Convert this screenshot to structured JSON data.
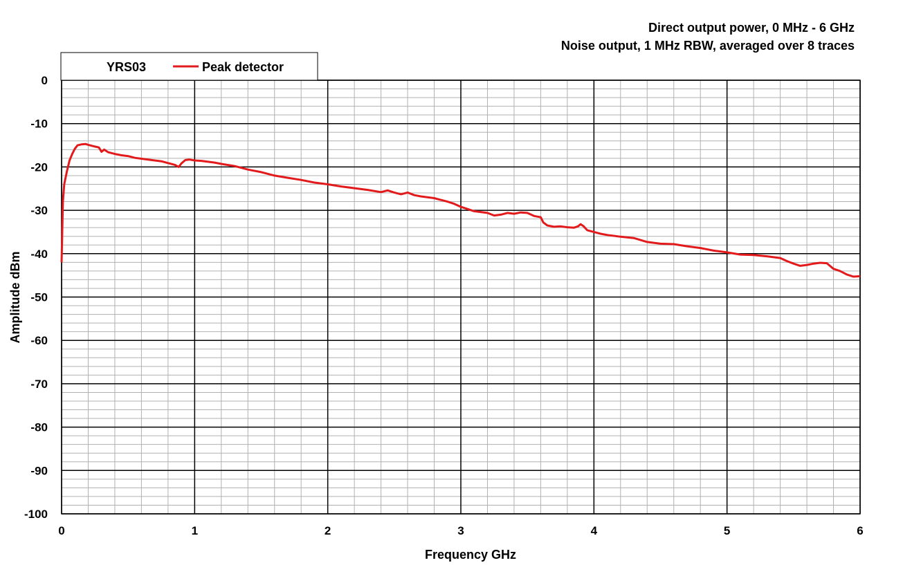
{
  "chart_data": {
    "type": "line",
    "title_lines": [
      "Direct output power, 0 MHz - 6 GHz",
      "Noise output, 1 MHz RBW, averaged over 8 traces"
    ],
    "xlabel": "Frequency  GHz",
    "ylabel": "Amplitude  dBm",
    "xlim": [
      0,
      6
    ],
    "ylim": [
      -100,
      0
    ],
    "x_ticks": [
      "0",
      "1",
      "2",
      "3",
      "4",
      "5",
      "6"
    ],
    "y_ticks": [
      "0",
      "-10",
      "-20",
      "-30",
      "-40",
      "-50",
      "-60",
      "-70",
      "-80",
      "-90",
      "-100"
    ],
    "grid": true,
    "legend": {
      "position": "top-left",
      "label": "YRS03",
      "entries": [
        "Peak detector"
      ]
    },
    "series": [
      {
        "name": "Peak detector",
        "color": "#e31a1c",
        "points": [
          [
            0.0,
            -42
          ],
          [
            0.01,
            -28
          ],
          [
            0.02,
            -24
          ],
          [
            0.04,
            -21
          ],
          [
            0.06,
            -18.5
          ],
          [
            0.08,
            -17
          ],
          [
            0.1,
            -15.8
          ],
          [
            0.12,
            -15
          ],
          [
            0.15,
            -14.8
          ],
          [
            0.18,
            -14.7
          ],
          [
            0.2,
            -14.9
          ],
          [
            0.25,
            -15.3
          ],
          [
            0.28,
            -15.5
          ],
          [
            0.3,
            -16.5
          ],
          [
            0.32,
            -16
          ],
          [
            0.35,
            -16.6
          ],
          [
            0.4,
            -17
          ],
          [
            0.45,
            -17.3
          ],
          [
            0.5,
            -17.5
          ],
          [
            0.55,
            -17.9
          ],
          [
            0.6,
            -18.1
          ],
          [
            0.65,
            -18.3
          ],
          [
            0.7,
            -18.5
          ],
          [
            0.75,
            -18.7
          ],
          [
            0.8,
            -19.1
          ],
          [
            0.85,
            -19.5
          ],
          [
            0.88,
            -20
          ],
          [
            0.9,
            -19.2
          ],
          [
            0.93,
            -18.4
          ],
          [
            0.96,
            -18.3
          ],
          [
            1.0,
            -18.5
          ],
          [
            1.05,
            -18.6
          ],
          [
            1.1,
            -18.8
          ],
          [
            1.15,
            -19
          ],
          [
            1.2,
            -19.3
          ],
          [
            1.3,
            -19.8
          ],
          [
            1.4,
            -20.6
          ],
          [
            1.5,
            -21.2
          ],
          [
            1.6,
            -22
          ],
          [
            1.7,
            -22.5
          ],
          [
            1.8,
            -23
          ],
          [
            1.9,
            -23.6
          ],
          [
            2.0,
            -24
          ],
          [
            2.1,
            -24.5
          ],
          [
            2.2,
            -24.9
          ],
          [
            2.3,
            -25.3
          ],
          [
            2.4,
            -25.8
          ],
          [
            2.45,
            -25.4
          ],
          [
            2.5,
            -25.9
          ],
          [
            2.55,
            -26.3
          ],
          [
            2.6,
            -25.9
          ],
          [
            2.65,
            -26.5
          ],
          [
            2.7,
            -26.8
          ],
          [
            2.8,
            -27.2
          ],
          [
            2.85,
            -27.6
          ],
          [
            2.9,
            -28
          ],
          [
            2.95,
            -28.5
          ],
          [
            3.0,
            -29.2
          ],
          [
            3.05,
            -29.7
          ],
          [
            3.1,
            -30.2
          ],
          [
            3.15,
            -30.4
          ],
          [
            3.2,
            -30.6
          ],
          [
            3.25,
            -31.2
          ],
          [
            3.3,
            -31
          ],
          [
            3.35,
            -30.6
          ],
          [
            3.4,
            -30.8
          ],
          [
            3.45,
            -30.5
          ],
          [
            3.5,
            -30.6
          ],
          [
            3.55,
            -31.3
          ],
          [
            3.6,
            -31.6
          ],
          [
            3.62,
            -32.8
          ],
          [
            3.65,
            -33.5
          ],
          [
            3.7,
            -33.8
          ],
          [
            3.75,
            -33.7
          ],
          [
            3.8,
            -33.9
          ],
          [
            3.85,
            -34
          ],
          [
            3.88,
            -33.7
          ],
          [
            3.9,
            -33.2
          ],
          [
            3.92,
            -33.6
          ],
          [
            3.95,
            -34.6
          ],
          [
            4.0,
            -35
          ],
          [
            4.05,
            -35.4
          ],
          [
            4.1,
            -35.7
          ],
          [
            4.2,
            -36.1
          ],
          [
            4.3,
            -36.4
          ],
          [
            4.4,
            -37.3
          ],
          [
            4.5,
            -37.7
          ],
          [
            4.6,
            -37.8
          ],
          [
            4.7,
            -38.3
          ],
          [
            4.8,
            -38.7
          ],
          [
            4.9,
            -39.3
          ],
          [
            5.0,
            -39.7
          ],
          [
            5.1,
            -40.2
          ],
          [
            5.2,
            -40.3
          ],
          [
            5.3,
            -40.6
          ],
          [
            5.4,
            -41
          ],
          [
            5.45,
            -41.7
          ],
          [
            5.5,
            -42.3
          ],
          [
            5.55,
            -42.8
          ],
          [
            5.6,
            -42.6
          ],
          [
            5.65,
            -42.3
          ],
          [
            5.7,
            -42.1
          ],
          [
            5.75,
            -42.2
          ],
          [
            5.8,
            -43.5
          ],
          [
            5.85,
            -44
          ],
          [
            5.9,
            -44.8
          ],
          [
            5.95,
            -45.3
          ],
          [
            6.0,
            -45.2
          ]
        ]
      }
    ]
  }
}
